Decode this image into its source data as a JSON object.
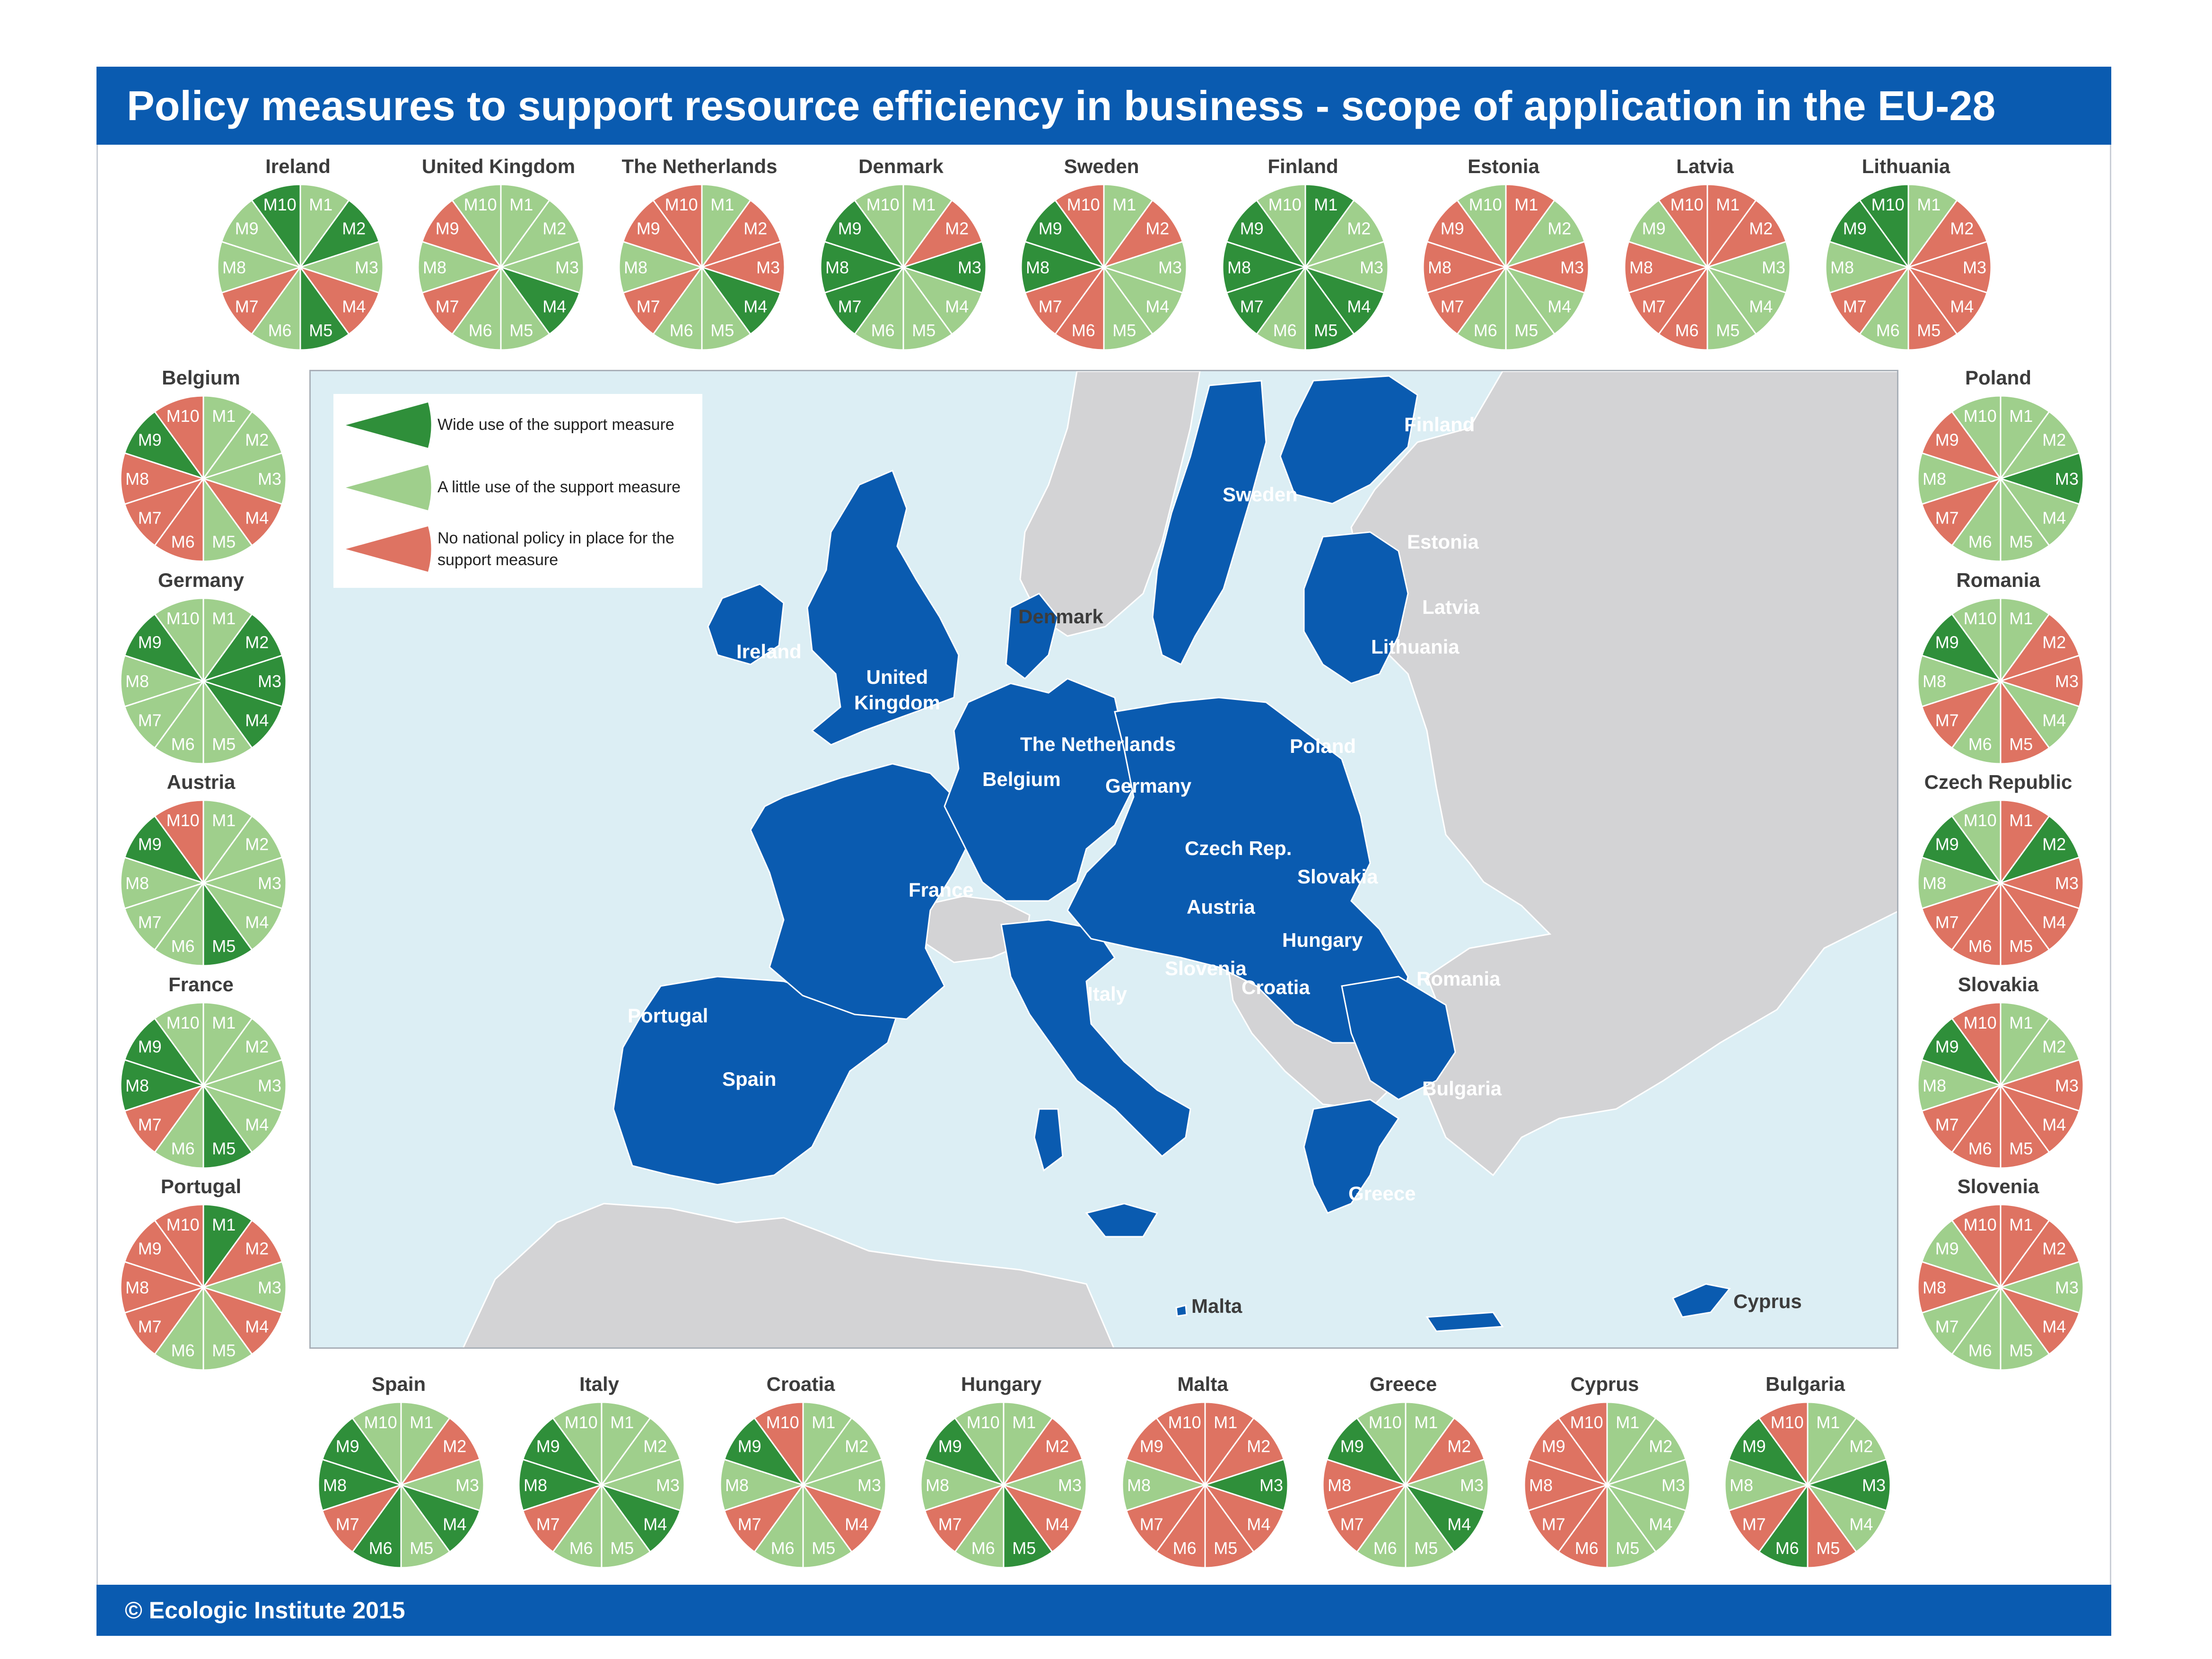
{
  "title": "Policy measures to support resource efficiency in business - scope of application in the EU-28",
  "footer": "© Ecologic Institute 2015",
  "colors": {
    "wide": "#2f8f3a",
    "little": "#9fcf8c",
    "none": "#de7362",
    "eu": "#0a5bb0",
    "non_eu": "#d3d3d5",
    "sea": "#dceef4",
    "header": "#0a5bb0"
  },
  "legend": {
    "wide": "Wide use of the support measure",
    "little": "A little use of the support measure",
    "none": "No national policy in place for the support measure"
  },
  "measures": [
    "M1",
    "M2",
    "M3",
    "M4",
    "M5",
    "M6",
    "M7",
    "M8",
    "M9",
    "M10"
  ],
  "map_labels": {
    "finland": "Finland",
    "sweden": "Sweden",
    "estonia": "Estonia",
    "latvia": "Latvia",
    "lithuania": "Lithuania",
    "denmark": "Denmark",
    "ireland": "Ireland",
    "united_kingdom": "United Kingdom",
    "the_netherlands": "The Netherlands",
    "belgium": "Belgium",
    "germany": "Germany",
    "poland": "Poland",
    "czech_rep": "Czech Rep.",
    "slovakia": "Slovakia",
    "austria": "Austria",
    "hungary": "Hungary",
    "france": "France",
    "slovenia": "Slovenia",
    "croatia": "Croatia",
    "romania": "Romania",
    "portugal": "Portugal",
    "spain": "Spain",
    "italy": "Italy",
    "bulgaria": "Bulgaria",
    "greece": "Greece",
    "malta": "Malta",
    "cyprus": "Cyprus"
  },
  "countries": [
    {
      "name": "Ireland",
      "values": [
        "L",
        "W",
        "L",
        "N",
        "W",
        "L",
        "N",
        "L",
        "L",
        "W"
      ]
    },
    {
      "name": "United Kingdom",
      "values": [
        "L",
        "L",
        "L",
        "W",
        "L",
        "L",
        "N",
        "L",
        "N",
        "L"
      ]
    },
    {
      "name": "The Netherlands",
      "values": [
        "L",
        "N",
        "N",
        "W",
        "L",
        "L",
        "N",
        "L",
        "N",
        "N"
      ]
    },
    {
      "name": "Denmark",
      "values": [
        "L",
        "N",
        "W",
        "L",
        "L",
        "L",
        "W",
        "W",
        "W",
        "L"
      ]
    },
    {
      "name": "Sweden",
      "values": [
        "L",
        "N",
        "L",
        "L",
        "L",
        "N",
        "N",
        "W",
        "W",
        "N"
      ]
    },
    {
      "name": "Finland",
      "values": [
        "W",
        "L",
        "L",
        "W",
        "W",
        "L",
        "W",
        "W",
        "W",
        "L"
      ]
    },
    {
      "name": "Estonia",
      "values": [
        "N",
        "L",
        "N",
        "L",
        "L",
        "L",
        "N",
        "N",
        "N",
        "L"
      ]
    },
    {
      "name": "Latvia",
      "values": [
        "N",
        "N",
        "L",
        "L",
        "L",
        "N",
        "N",
        "N",
        "L",
        "N"
      ]
    },
    {
      "name": "Lithuania",
      "values": [
        "L",
        "N",
        "N",
        "N",
        "N",
        "L",
        "N",
        "L",
        "W",
        "W"
      ]
    },
    {
      "name": "Belgium",
      "values": [
        "L",
        "L",
        "L",
        "N",
        "L",
        "N",
        "N",
        "N",
        "W",
        "N"
      ]
    },
    {
      "name": "Germany",
      "values": [
        "L",
        "W",
        "W",
        "W",
        "L",
        "L",
        "L",
        "L",
        "W",
        "L"
      ]
    },
    {
      "name": "Austria",
      "values": [
        "L",
        "L",
        "L",
        "L",
        "W",
        "L",
        "L",
        "L",
        "W",
        "N"
      ]
    },
    {
      "name": "France",
      "values": [
        "L",
        "L",
        "L",
        "L",
        "W",
        "L",
        "N",
        "W",
        "W",
        "L"
      ]
    },
    {
      "name": "Portugal",
      "values": [
        "W",
        "N",
        "L",
        "N",
        "L",
        "L",
        "N",
        "N",
        "N",
        "N"
      ]
    },
    {
      "name": "Poland",
      "values": [
        "L",
        "L",
        "W",
        "L",
        "L",
        "L",
        "N",
        "L",
        "N",
        "L"
      ]
    },
    {
      "name": "Romania",
      "values": [
        "L",
        "N",
        "N",
        "L",
        "N",
        "L",
        "N",
        "L",
        "W",
        "L"
      ]
    },
    {
      "name": "Czech Republic",
      "values": [
        "N",
        "W",
        "N",
        "N",
        "N",
        "N",
        "N",
        "L",
        "W",
        "L"
      ]
    },
    {
      "name": "Slovakia",
      "values": [
        "L",
        "L",
        "N",
        "N",
        "N",
        "N",
        "N",
        "L",
        "W",
        "N"
      ]
    },
    {
      "name": "Slovenia",
      "values": [
        "N",
        "N",
        "L",
        "N",
        "L",
        "L",
        "L",
        "N",
        "L",
        "N"
      ]
    },
    {
      "name": "Spain",
      "values": [
        "L",
        "N",
        "L",
        "W",
        "L",
        "W",
        "N",
        "W",
        "W",
        "L"
      ]
    },
    {
      "name": "Italy",
      "values": [
        "L",
        "L",
        "L",
        "W",
        "L",
        "L",
        "N",
        "W",
        "W",
        "L"
      ]
    },
    {
      "name": "Croatia",
      "values": [
        "L",
        "L",
        "L",
        "N",
        "L",
        "L",
        "N",
        "L",
        "W",
        "N"
      ]
    },
    {
      "name": "Hungary",
      "values": [
        "L",
        "N",
        "L",
        "N",
        "W",
        "L",
        "N",
        "L",
        "W",
        "L"
      ]
    },
    {
      "name": "Malta",
      "values": [
        "N",
        "N",
        "W",
        "N",
        "N",
        "N",
        "N",
        "L",
        "N",
        "N"
      ]
    },
    {
      "name": "Greece",
      "values": [
        "L",
        "N",
        "L",
        "W",
        "L",
        "L",
        "N",
        "N",
        "W",
        "L"
      ]
    },
    {
      "name": "Cyprus",
      "values": [
        "L",
        "L",
        "L",
        "L",
        "L",
        "N",
        "N",
        "N",
        "N",
        "N"
      ]
    },
    {
      "name": "Bulgaria",
      "values": [
        "L",
        "L",
        "W",
        "L",
        "N",
        "W",
        "N",
        "L",
        "W",
        "N"
      ]
    }
  ]
}
